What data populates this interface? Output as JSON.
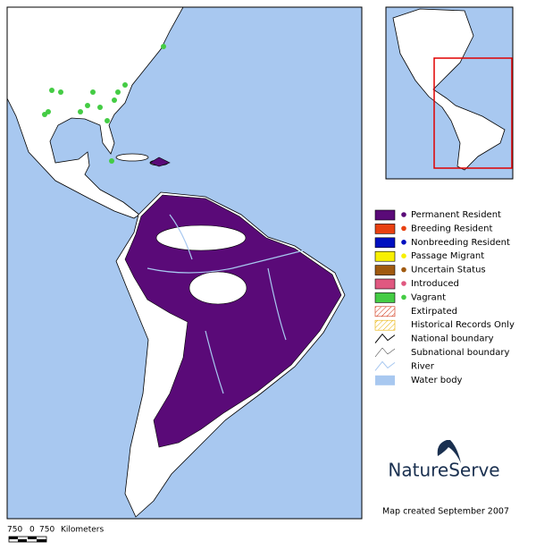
{
  "legend": {
    "items": [
      "Permanent Resident",
      "Breeding Resident",
      "Nonbreeding Resident",
      "Passage Migrant",
      "Uncertain Status",
      "Introduced",
      "Vagrant",
      "Extirpated",
      "Historical Records Only",
      "National boundary",
      "Subnational boundary",
      "River",
      "Water body"
    ]
  },
  "scale": {
    "left": "750",
    "zero": "0",
    "right": "750",
    "unit": "Kilometers"
  },
  "logo": "NatureServe",
  "footer": "Map created September 2007"
}
